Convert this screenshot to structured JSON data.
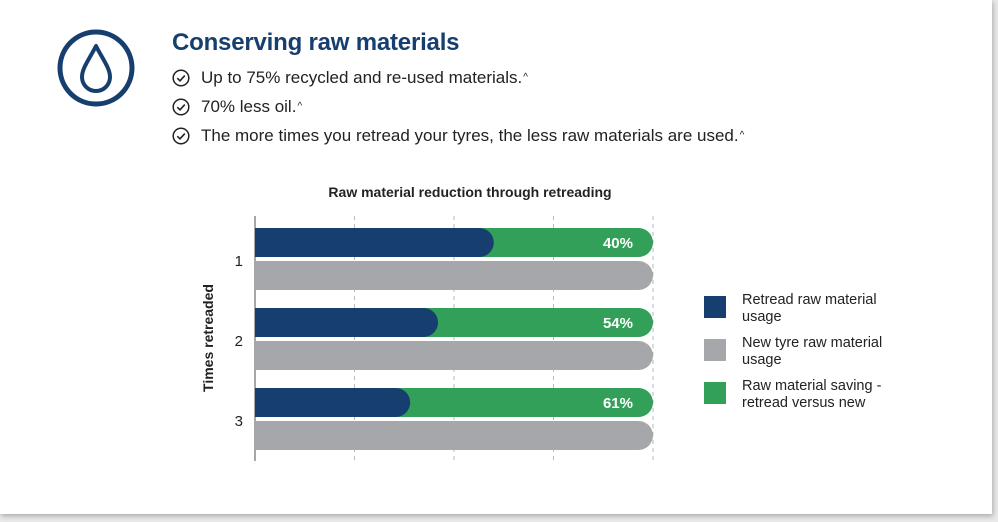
{
  "header": {
    "title": "Conserving raw materials",
    "icon": "water-drop-icon",
    "bullets": [
      {
        "text": "Up to 75% recycled and re-used materials.",
        "mark": "^"
      },
      {
        "text": "70% less oil.",
        "mark": "^"
      },
      {
        "text": "The more times you retread your tyres, the less raw materials are used.",
        "mark": "^"
      }
    ]
  },
  "colors": {
    "brand_navy": "#163e6f",
    "retread_usage": "#163e6f",
    "new_tyre_usage": "#a6a7aa",
    "saving": "#33a05a"
  },
  "chart_data": {
    "type": "bar",
    "orientation": "horizontal",
    "title": "Raw material reduction through retreading",
    "ylabel": "Times retreaded",
    "xlabel": "",
    "categories": [
      "1",
      "2",
      "3"
    ],
    "xlim": [
      0,
      100
    ],
    "grid": true,
    "legend_position": "right",
    "series": [
      {
        "name": "Retread raw material usage",
        "values": [
          60,
          46,
          39
        ]
      },
      {
        "name": "Raw material saving - retread versus new",
        "values": [
          40,
          54,
          61
        ],
        "labels": [
          "40%",
          "54%",
          "61%"
        ]
      },
      {
        "name": "New tyre raw material usage",
        "values": [
          100,
          100,
          100
        ]
      }
    ]
  }
}
